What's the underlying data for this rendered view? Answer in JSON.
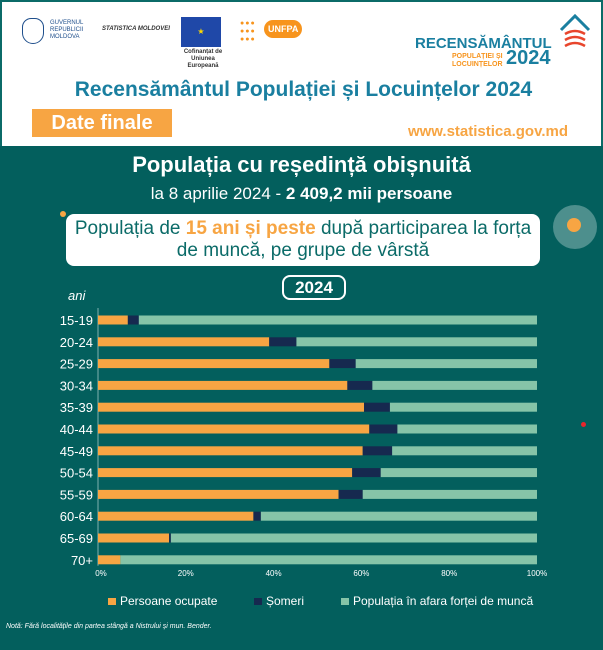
{
  "header": {
    "gov_logo": "GUVERNUL REPUBLICII MOLDOVA",
    "stat_logo": "STATISTICA MOLDOVEI",
    "eu_caption": "Cofinanțat de Uniunea Europeană",
    "unfpa_logo": "UNFPA",
    "census_logo": {
      "line1": "RECENSĂMÂNTUL",
      "line2": "POPULAȚIEI ȘI LOCUINȚELOR",
      "year": "2024"
    },
    "title": "Recensământul Populației și Locuințelor 2024",
    "badge": "Date finale",
    "url": "www.statistica.gov.md"
  },
  "main": {
    "heading": "Populația cu reședință obișnuită",
    "subheading_pre": "la 8 aprilie 2024 - ",
    "subheading_bold": "2 409,2 mii persoane",
    "box_pre": "Populația de ",
    "box_highlight": "15 ani și peste",
    "box_post": " după participarea la forța de muncă, pe grupe de vârstă",
    "year": "2024",
    "note": "Notă: Fără localitățile din partea stângă a Nistrului și mun. Bender."
  },
  "colors": {
    "employed": "#f7a543",
    "unemployed": "#16294f",
    "inactive": "#86c4a8",
    "bg": "#035f5d"
  },
  "chart_data": {
    "type": "bar",
    "orientation": "horizontal",
    "stacked": true,
    "ylabel": "ani",
    "categories": [
      "15-19",
      "20-24",
      "25-29",
      "30-34",
      "35-39",
      "40-44",
      "45-49",
      "50-54",
      "55-59",
      "60-64",
      "65-69",
      "70+"
    ],
    "series": [
      {
        "name": "Persoane ocupate",
        "values": [
          6.8,
          39.0,
          52.7,
          56.8,
          60.6,
          61.8,
          60.3,
          57.9,
          54.8,
          35.4,
          16.2,
          5.1
        ]
      },
      {
        "name": "Șomeri",
        "values": [
          2.5,
          6.2,
          6.0,
          5.7,
          5.9,
          6.4,
          6.7,
          6.5,
          5.5,
          1.7,
          0.4,
          0.0
        ]
      },
      {
        "name": "Populația în afara forței de muncă",
        "values": [
          90.7,
          54.8,
          41.3,
          37.5,
          33.5,
          31.8,
          33.0,
          35.6,
          39.7,
          62.9,
          83.4,
          94.9
        ]
      }
    ],
    "xticks": [
      "0%",
      "20%",
      "40%",
      "60%",
      "80%",
      "100%"
    ],
    "xlim": [
      0,
      100
    ],
    "legend": "bottom",
    "grid": false
  }
}
